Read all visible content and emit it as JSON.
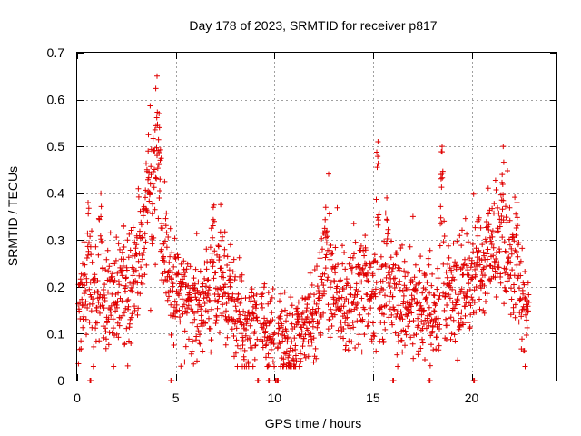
{
  "chart_data": {
    "type": "scatter",
    "title": "Day 178 of 2023, SRMTID for receiver p817",
    "xlabel": "GPS time / hours",
    "ylabel": "SRMTID / TECUs",
    "xlim": [
      0,
      24.3
    ],
    "ylim": [
      0,
      0.7
    ],
    "xticks": [
      0,
      5,
      10,
      15,
      20
    ],
    "xtick_labels": [
      "0",
      "5",
      "10",
      "15",
      "20"
    ],
    "yticks": [
      0,
      0.1,
      0.2,
      0.3,
      0.4,
      0.5,
      0.6,
      0.7
    ],
    "ytick_labels": [
      "0",
      "0.1",
      "0.2",
      "0.3",
      "0.4",
      "0.5",
      "0.6",
      "0.7"
    ],
    "grid": true,
    "marker": "+",
    "color": "#e00000",
    "sampling_interval_hours": 0.0125,
    "baseline": {
      "x": [
        0,
        0.5,
        1,
        1.5,
        2,
        2.5,
        3,
        3.3,
        3.6,
        3.9,
        4.1,
        4.3,
        4.6,
        5,
        5.5,
        6,
        6.5,
        7,
        7.3,
        7.6,
        8,
        8.5,
        9,
        9.5,
        10,
        10.5,
        11,
        11.5,
        12,
        12.3,
        12.6,
        13,
        13.5,
        14,
        14.5,
        15,
        15.5,
        16,
        16.5,
        17,
        17.5,
        18,
        18.5,
        19,
        19.5,
        20,
        20.5,
        21,
        21.5,
        22,
        22.5,
        22.9
      ],
      "y": [
        0.15,
        0.16,
        0.18,
        0.17,
        0.19,
        0.2,
        0.24,
        0.3,
        0.38,
        0.42,
        0.4,
        0.3,
        0.24,
        0.2,
        0.17,
        0.16,
        0.18,
        0.2,
        0.21,
        0.18,
        0.14,
        0.12,
        0.11,
        0.1,
        0.09,
        0.08,
        0.085,
        0.1,
        0.13,
        0.17,
        0.22,
        0.2,
        0.16,
        0.18,
        0.2,
        0.19,
        0.18,
        0.19,
        0.17,
        0.16,
        0.15,
        0.14,
        0.15,
        0.17,
        0.19,
        0.2,
        0.24,
        0.27,
        0.28,
        0.24,
        0.18,
        0.15
      ]
    },
    "peaks": [
      {
        "x": 3.6,
        "y": 0.49
      },
      {
        "x": 4.05,
        "y": 0.65
      },
      {
        "x": 4.15,
        "y": 0.57
      },
      {
        "x": 0.55,
        "y": 0.38
      },
      {
        "x": 1.2,
        "y": 0.4
      },
      {
        "x": 2.35,
        "y": 0.33
      },
      {
        "x": 6.9,
        "y": 0.37
      },
      {
        "x": 12.6,
        "y": 0.37
      },
      {
        "x": 14.6,
        "y": 0.31
      },
      {
        "x": 15.25,
        "y": 0.51
      },
      {
        "x": 15.7,
        "y": 0.39
      },
      {
        "x": 18.5,
        "y": 0.5
      },
      {
        "x": 18.45,
        "y": 0.44
      },
      {
        "x": 20.3,
        "y": 0.34
      },
      {
        "x": 21.6,
        "y": 0.5
      },
      {
        "x": 21.55,
        "y": 0.44
      },
      {
        "x": 22.3,
        "y": 0.38
      }
    ],
    "gaps": [
      [
        9.15,
        9.3
      ],
      [
        10.0,
        10.15
      ]
    ],
    "zero_points": [
      0.65,
      4.75,
      9.15,
      9.7,
      10.05,
      10.15,
      16.0,
      17.85,
      20.1
    ]
  }
}
